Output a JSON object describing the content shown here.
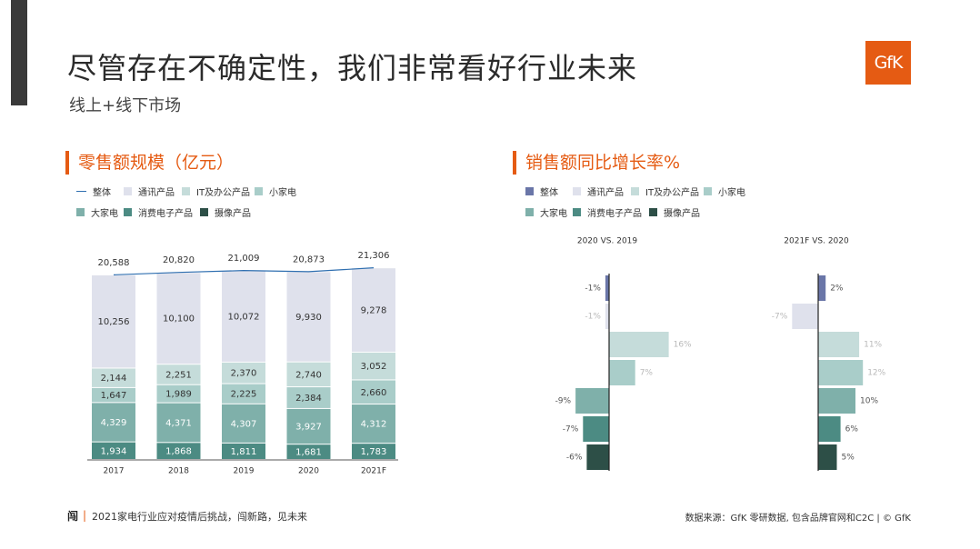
{
  "header": {
    "title": "尽管存在不确定性，我们非常看好行业未来",
    "subtitle": "线上+线下市场",
    "logo_text": "GfK"
  },
  "colors": {
    "accent": "#e55b13",
    "total_line": "#2f6fb0",
    "categories": [
      "#dfe1ec",
      "#c5dcda",
      "#a9cdc9",
      "#7fb0aa",
      "#4c8b83",
      "#2d4f47"
    ],
    "total_bar": "#6a76a8"
  },
  "legend": {
    "total": "整体",
    "items": [
      "通讯产品",
      "IT及办公产品",
      "小家电",
      "大家电",
      "消费电子产品",
      "摄像产品"
    ]
  },
  "footer": {
    "logo": "闯",
    "sep": "|",
    "left_text": "2021家电行业应对疫情后挑战，闯新路，见未来",
    "right_text": "数据来源：GfK 零研数据, 包含品牌官网和C2C  |  © GfK"
  },
  "chart_data": [
    {
      "type": "bar",
      "stacked": true,
      "title": "零售额规模（亿元）",
      "categories": [
        "2017",
        "2018",
        "2019",
        "2020",
        "2021F"
      ],
      "series": [
        {
          "name": "摄像产品",
          "values": [
            null,
            null,
            null,
            null,
            null
          ]
        },
        {
          "name": "消费电子产品",
          "values": [
            1934,
            1868,
            1811,
            1681,
            1783
          ]
        },
        {
          "name": "大家电",
          "values": [
            4329,
            4371,
            4307,
            3927,
            4312
          ]
        },
        {
          "name": "小家电",
          "values": [
            1647,
            1989,
            2225,
            2384,
            2660
          ]
        },
        {
          "name": "IT及办公产品",
          "values": [
            2144,
            2251,
            2370,
            2740,
            3052
          ]
        },
        {
          "name": "通讯产品",
          "values": [
            10256,
            10100,
            10072,
            9930,
            9278
          ]
        }
      ],
      "totals": {
        "name": "整体",
        "values": [
          20588,
          20820,
          21009,
          20873,
          21306
        ]
      }
    },
    {
      "type": "bar",
      "orientation": "horizontal",
      "title": "销售额同比增长率%",
      "groups": [
        "2020 VS. 2019",
        "2021F VS. 2020"
      ],
      "categories": [
        "整体",
        "通讯产品",
        "IT及办公产品",
        "小家电",
        "大家电",
        "消费电子产品",
        "摄像产品"
      ],
      "series": [
        {
          "name": "2020 VS. 2019",
          "values": [
            -1,
            -1,
            16,
            7,
            -9,
            -7,
            -6
          ]
        },
        {
          "name": "2021F VS. 2020",
          "values": [
            2,
            -7,
            11,
            12,
            10,
            6,
            5
          ]
        }
      ],
      "labels": [
        [
          "-1%",
          "-1%",
          "16%",
          "7%",
          "-9%",
          "-7%",
          "-6%"
        ],
        [
          "2%",
          "-7%",
          "11%",
          "12%",
          "10%",
          "6%",
          "5%"
        ]
      ]
    }
  ]
}
